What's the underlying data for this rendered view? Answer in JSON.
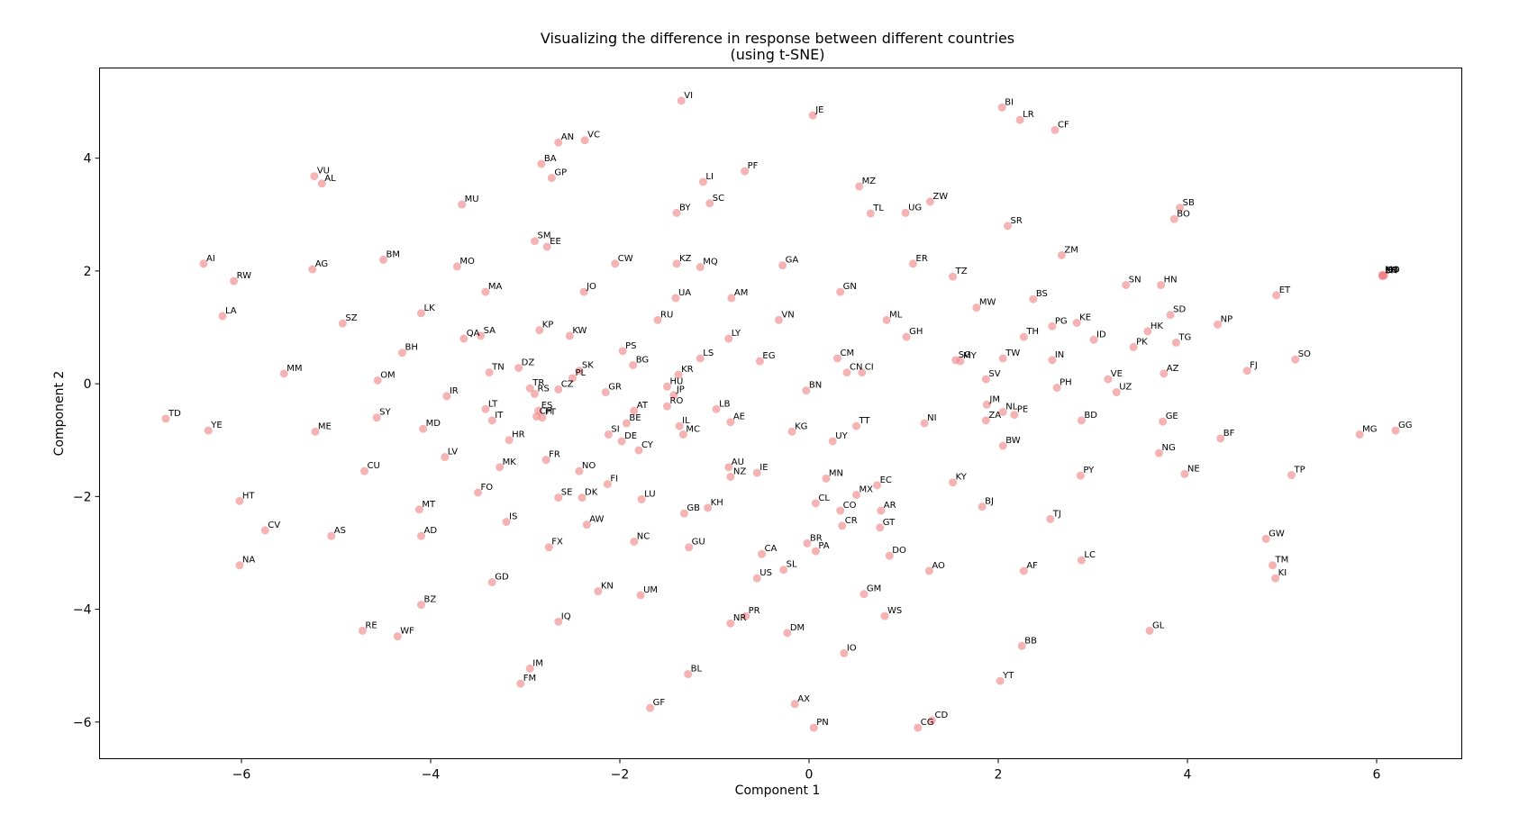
{
  "chart_data": {
    "type": "scatter",
    "title_line1": "Visualizing the difference in response between different countries",
    "title_line2": "(using t-SNE)",
    "xlabel": "Component 1",
    "ylabel": "Component 2",
    "xlim": [
      -7.5,
      6.9
    ],
    "ylim": [
      -6.65,
      5.6
    ],
    "xticks": [
      -6,
      -4,
      -2,
      0,
      2,
      4,
      6
    ],
    "yticks": [
      -6,
      -4,
      -2,
      0,
      2,
      4
    ],
    "xtick_labels": [
      "−6",
      "−4",
      "−2",
      "0",
      "2",
      "4",
      "6"
    ],
    "ytick_labels": [
      "−6",
      "−4",
      "−2",
      "0",
      "2",
      "4"
    ],
    "grid": false,
    "marker_color": "#f08080",
    "points": [
      {
        "label": "VI",
        "x": -1.35,
        "y": 5.02
      },
      {
        "label": "JE",
        "x": 0.04,
        "y": 4.76
      },
      {
        "label": "BI",
        "x": 2.04,
        "y": 4.9
      },
      {
        "label": "LR",
        "x": 2.23,
        "y": 4.68
      },
      {
        "label": "CF",
        "x": 2.6,
        "y": 4.5
      },
      {
        "label": "AN",
        "x": -2.65,
        "y": 4.28
      },
      {
        "label": "VC",
        "x": -2.37,
        "y": 4.32
      },
      {
        "label": "BA",
        "x": -2.83,
        "y": 3.9
      },
      {
        "label": "GP",
        "x": -2.72,
        "y": 3.65
      },
      {
        "label": "PF",
        "x": -0.68,
        "y": 3.77
      },
      {
        "label": "LI",
        "x": -1.12,
        "y": 3.58
      },
      {
        "label": "MZ",
        "x": 0.53,
        "y": 3.5
      },
      {
        "label": "VU",
        "x": -5.23,
        "y": 3.68
      },
      {
        "label": "AL",
        "x": -5.15,
        "y": 3.55
      },
      {
        "label": "MU",
        "x": -3.67,
        "y": 3.18
      },
      {
        "label": "SC",
        "x": -1.05,
        "y": 3.2
      },
      {
        "label": "BY",
        "x": -1.4,
        "y": 3.03
      },
      {
        "label": "ZW",
        "x": 1.28,
        "y": 3.23
      },
      {
        "label": "TL",
        "x": 0.65,
        "y": 3.02
      },
      {
        "label": "UG",
        "x": 1.02,
        "y": 3.03
      },
      {
        "label": "SR",
        "x": 2.1,
        "y": 2.8
      },
      {
        "label": "SB",
        "x": 3.92,
        "y": 3.12
      },
      {
        "label": "BO",
        "x": 3.86,
        "y": 2.92
      },
      {
        "label": "SM",
        "x": -2.9,
        "y": 2.53
      },
      {
        "label": "EE",
        "x": -2.77,
        "y": 2.43
      },
      {
        "label": "AI",
        "x": -6.4,
        "y": 2.13
      },
      {
        "label": "BM",
        "x": -4.5,
        "y": 2.2
      },
      {
        "label": "AG",
        "x": -5.25,
        "y": 2.03
      },
      {
        "label": "MO",
        "x": -3.72,
        "y": 2.08
      },
      {
        "label": "CW",
        "x": -2.05,
        "y": 2.13
      },
      {
        "label": "KZ",
        "x": -1.4,
        "y": 2.13
      },
      {
        "label": "MQ",
        "x": -1.15,
        "y": 2.07
      },
      {
        "label": "GA",
        "x": -0.28,
        "y": 2.1
      },
      {
        "label": "ER",
        "x": 1.1,
        "y": 2.13
      },
      {
        "label": "ZM",
        "x": 2.67,
        "y": 2.28
      },
      {
        "label": "TZ",
        "x": 1.52,
        "y": 1.9
      },
      {
        "label": "RW",
        "x": -6.08,
        "y": 1.82
      },
      {
        "label": "JO",
        "x": -2.38,
        "y": 1.63
      },
      {
        "label": "MA",
        "x": -3.42,
        "y": 1.63
      },
      {
        "label": "UA",
        "x": -1.41,
        "y": 1.52
      },
      {
        "label": "AM",
        "x": -0.82,
        "y": 1.52
      },
      {
        "label": "GN",
        "x": 0.33,
        "y": 1.63
      },
      {
        "label": "BS",
        "x": 2.37,
        "y": 1.5
      },
      {
        "label": "SN",
        "x": 3.35,
        "y": 1.75
      },
      {
        "label": "HN",
        "x": 3.72,
        "y": 1.75
      },
      {
        "label": "ET",
        "x": 4.94,
        "y": 1.57
      },
      {
        "label": "LA",
        "x": -6.2,
        "y": 1.2
      },
      {
        "label": "SZ",
        "x": -4.93,
        "y": 1.07
      },
      {
        "label": "LK",
        "x": -4.1,
        "y": 1.25
      },
      {
        "label": "RU",
        "x": -1.6,
        "y": 1.13
      },
      {
        "label": "VN",
        "x": -0.32,
        "y": 1.13
      },
      {
        "label": "ML",
        "x": 0.82,
        "y": 1.13
      },
      {
        "label": "MW",
        "x": 1.77,
        "y": 1.35
      },
      {
        "label": "KE",
        "x": 2.83,
        "y": 1.08
      },
      {
        "label": "PG",
        "x": 2.57,
        "y": 1.02
      },
      {
        "label": "SD",
        "x": 3.82,
        "y": 1.22
      },
      {
        "label": "NP",
        "x": 4.32,
        "y": 1.05
      },
      {
        "label": "KP",
        "x": -2.85,
        "y": 0.95
      },
      {
        "label": "KW",
        "x": -2.53,
        "y": 0.85
      },
      {
        "label": "QA",
        "x": -3.65,
        "y": 0.8
      },
      {
        "label": "SA",
        "x": -3.47,
        "y": 0.85
      },
      {
        "label": "LY",
        "x": -0.85,
        "y": 0.8
      },
      {
        "label": "GH",
        "x": 1.03,
        "y": 0.83
      },
      {
        "label": "TH",
        "x": 2.27,
        "y": 0.83
      },
      {
        "label": "ID",
        "x": 3.01,
        "y": 0.78
      },
      {
        "label": "HK",
        "x": 3.58,
        "y": 0.93
      },
      {
        "label": "PK",
        "x": 3.43,
        "y": 0.65
      },
      {
        "label": "TG",
        "x": 3.88,
        "y": 0.73
      },
      {
        "label": "BH",
        "x": -4.3,
        "y": 0.55
      },
      {
        "label": "PS",
        "x": -1.97,
        "y": 0.58
      },
      {
        "label": "LS",
        "x": -1.15,
        "y": 0.45
      },
      {
        "label": "EG",
        "x": -0.52,
        "y": 0.4
      },
      {
        "label": "CM",
        "x": 0.3,
        "y": 0.45
      },
      {
        "label": "MY",
        "x": 1.6,
        "y": 0.4
      },
      {
        "label": "SG",
        "x": 1.55,
        "y": 0.42
      },
      {
        "label": "TW",
        "x": 2.05,
        "y": 0.45
      },
      {
        "label": "IN",
        "x": 2.57,
        "y": 0.42
      },
      {
        "label": "SO",
        "x": 5.14,
        "y": 0.43
      },
      {
        "label": "BG",
        "x": -1.86,
        "y": 0.33
      },
      {
        "label": "MM",
        "x": -5.55,
        "y": 0.18
      },
      {
        "label": "TN",
        "x": -3.38,
        "y": 0.2
      },
      {
        "label": "DZ",
        "x": -3.07,
        "y": 0.28
      },
      {
        "label": "SK",
        "x": -2.43,
        "y": 0.23
      },
      {
        "label": "PL",
        "x": -2.5,
        "y": 0.1
      },
      {
        "label": "KR",
        "x": -1.38,
        "y": 0.16
      },
      {
        "label": "CN",
        "x": 0.4,
        "y": 0.2
      },
      {
        "label": "CI",
        "x": 0.56,
        "y": 0.2
      },
      {
        "label": "SV",
        "x": 1.87,
        "y": 0.08
      },
      {
        "label": "VE",
        "x": 3.16,
        "y": 0.08
      },
      {
        "label": "AZ",
        "x": 3.75,
        "y": 0.18
      },
      {
        "label": "FJ",
        "x": 4.63,
        "y": 0.23
      },
      {
        "label": "OM",
        "x": -4.56,
        "y": 0.06
      },
      {
        "label": "CZ",
        "x": -2.65,
        "y": -0.1
      },
      {
        "label": "TR",
        "x": -2.95,
        "y": -0.08
      },
      {
        "label": "RS",
        "x": -2.9,
        "y": -0.18
      },
      {
        "label": "HU",
        "x": -1.5,
        "y": -0.05
      },
      {
        "label": "GR",
        "x": -2.15,
        "y": -0.15
      },
      {
        "label": "JP",
        "x": -1.43,
        "y": -0.2
      },
      {
        "label": "BN",
        "x": -0.03,
        "y": -0.12
      },
      {
        "label": "PH",
        "x": 2.62,
        "y": -0.07
      },
      {
        "label": "UZ",
        "x": 3.25,
        "y": -0.15
      },
      {
        "label": "IR",
        "x": -3.83,
        "y": -0.22
      },
      {
        "label": "RO",
        "x": -1.5,
        "y": -0.4
      },
      {
        "label": "AT",
        "x": -1.85,
        "y": -0.48
      },
      {
        "label": "LB",
        "x": -0.98,
        "y": -0.45
      },
      {
        "label": "JM",
        "x": 1.88,
        "y": -0.37
      },
      {
        "label": "LT",
        "x": -3.42,
        "y": -0.45
      },
      {
        "label": "ES",
        "x": -2.86,
        "y": -0.48
      },
      {
        "label": "CH",
        "x": -2.88,
        "y": -0.58
      },
      {
        "label": "PT",
        "x": -2.82,
        "y": -0.6
      },
      {
        "label": "BE",
        "x": -1.93,
        "y": -0.7
      },
      {
        "label": "NL",
        "x": 2.05,
        "y": -0.5
      },
      {
        "label": "PE",
        "x": 2.17,
        "y": -0.55
      },
      {
        "label": "SY",
        "x": -4.57,
        "y": -0.6
      },
      {
        "label": "IT",
        "x": -3.35,
        "y": -0.65
      },
      {
        "label": "AE",
        "x": -0.83,
        "y": -0.68
      },
      {
        "label": "ZA",
        "x": 1.87,
        "y": -0.65
      },
      {
        "label": "BD",
        "x": 2.88,
        "y": -0.65
      },
      {
        "label": "GE",
        "x": 3.74,
        "y": -0.67
      },
      {
        "label": "TD",
        "x": -6.8,
        "y": -0.62
      },
      {
        "label": "IL",
        "x": -1.37,
        "y": -0.75
      },
      {
        "label": "TT",
        "x": 0.5,
        "y": -0.75
      },
      {
        "label": "NI",
        "x": 1.22,
        "y": -0.7
      },
      {
        "label": "YE",
        "x": -6.35,
        "y": -0.83
      },
      {
        "label": "ME",
        "x": -5.22,
        "y": -0.85
      },
      {
        "label": "MD",
        "x": -4.08,
        "y": -0.8
      },
      {
        "label": "SI",
        "x": -2.12,
        "y": -0.9
      },
      {
        "label": "MC",
        "x": -1.33,
        "y": -0.9
      },
      {
        "label": "KG",
        "x": -0.18,
        "y": -0.85
      },
      {
        "label": "MG",
        "x": 5.82,
        "y": -0.9
      },
      {
        "label": "GG",
        "x": 6.2,
        "y": -0.83
      },
      {
        "label": "HR",
        "x": -3.17,
        "y": -1.0
      },
      {
        "label": "DE",
        "x": -1.98,
        "y": -1.02
      },
      {
        "label": "CY",
        "x": -1.8,
        "y": -1.18
      },
      {
        "label": "UY",
        "x": 0.25,
        "y": -1.02
      },
      {
        "label": "BW",
        "x": 2.05,
        "y": -1.1
      },
      {
        "label": "BF",
        "x": 4.35,
        "y": -0.97
      },
      {
        "label": "NG",
        "x": 3.7,
        "y": -1.23
      },
      {
        "label": "LV",
        "x": -3.85,
        "y": -1.3
      },
      {
        "label": "FR",
        "x": -2.78,
        "y": -1.35
      },
      {
        "label": "MK",
        "x": -3.27,
        "y": -1.48
      },
      {
        "label": "NO",
        "x": -2.43,
        "y": -1.55
      },
      {
        "label": "AU",
        "x": -0.85,
        "y": -1.48
      },
      {
        "label": "NZ",
        "x": -0.83,
        "y": -1.65
      },
      {
        "label": "IE",
        "x": -0.55,
        "y": -1.58
      },
      {
        "label": "MN",
        "x": 0.18,
        "y": -1.68
      },
      {
        "label": "CU",
        "x": -4.7,
        "y": -1.55
      },
      {
        "label": "KY",
        "x": 1.52,
        "y": -1.75
      },
      {
        "label": "PY",
        "x": 2.87,
        "y": -1.63
      },
      {
        "label": "NE",
        "x": 3.97,
        "y": -1.6
      },
      {
        "label": "TP",
        "x": 5.1,
        "y": -1.62
      },
      {
        "label": "FI",
        "x": -2.13,
        "y": -1.78
      },
      {
        "label": "EC",
        "x": 0.72,
        "y": -1.8
      },
      {
        "label": "MX",
        "x": 0.5,
        "y": -1.97
      },
      {
        "label": "FO",
        "x": -3.5,
        "y": -1.93
      },
      {
        "label": "SE",
        "x": -2.65,
        "y": -2.02
      },
      {
        "label": "DK",
        "x": -2.4,
        "y": -2.02
      },
      {
        "label": "LU",
        "x": -1.77,
        "y": -2.05
      },
      {
        "label": "HT",
        "x": -6.02,
        "y": -2.08
      },
      {
        "label": "CL",
        "x": 0.07,
        "y": -2.12
      },
      {
        "label": "KH",
        "x": -1.07,
        "y": -2.2
      },
      {
        "label": "BJ",
        "x": 1.83,
        "y": -2.18
      },
      {
        "label": "MT",
        "x": -4.12,
        "y": -2.23
      },
      {
        "label": "CO",
        "x": 0.33,
        "y": -2.25
      },
      {
        "label": "AR",
        "x": 0.76,
        "y": -2.25
      },
      {
        "label": "GB",
        "x": -1.32,
        "y": -2.3
      },
      {
        "label": "TJ",
        "x": 2.55,
        "y": -2.4
      },
      {
        "label": "IS",
        "x": -3.2,
        "y": -2.45
      },
      {
        "label": "AW",
        "x": -2.35,
        "y": -2.5
      },
      {
        "label": "CR",
        "x": 0.35,
        "y": -2.52
      },
      {
        "label": "GT",
        "x": 0.75,
        "y": -2.55
      },
      {
        "label": "CV",
        "x": -5.75,
        "y": -2.6
      },
      {
        "label": "AS",
        "x": -5.05,
        "y": -2.7
      },
      {
        "label": "AD",
        "x": -4.1,
        "y": -2.7
      },
      {
        "label": "GW",
        "x": 4.83,
        "y": -2.75
      },
      {
        "label": "NC",
        "x": -1.85,
        "y": -2.8
      },
      {
        "label": "FX",
        "x": -2.75,
        "y": -2.9
      },
      {
        "label": "GU",
        "x": -1.27,
        "y": -2.9
      },
      {
        "label": "BR",
        "x": -0.02,
        "y": -2.83
      },
      {
        "label": "PA",
        "x": 0.07,
        "y": -2.97
      },
      {
        "label": "CA",
        "x": -0.5,
        "y": -3.02
      },
      {
        "label": "DO",
        "x": 0.85,
        "y": -3.05
      },
      {
        "label": "LC",
        "x": 2.88,
        "y": -3.13
      },
      {
        "label": "NA",
        "x": -6.02,
        "y": -3.22
      },
      {
        "label": "TM",
        "x": 4.9,
        "y": -3.22
      },
      {
        "label": "AO",
        "x": 1.27,
        "y": -3.32
      },
      {
        "label": "AF",
        "x": 2.27,
        "y": -3.32
      },
      {
        "label": "SL",
        "x": -0.27,
        "y": -3.3
      },
      {
        "label": "US",
        "x": -0.55,
        "y": -3.45
      },
      {
        "label": "KI",
        "x": 4.93,
        "y": -3.45
      },
      {
        "label": "GD",
        "x": -3.35,
        "y": -3.52
      },
      {
        "label": "KN",
        "x": -2.23,
        "y": -3.68
      },
      {
        "label": "UM",
        "x": -1.78,
        "y": -3.75
      },
      {
        "label": "GM",
        "x": 0.58,
        "y": -3.73
      },
      {
        "label": "BZ",
        "x": -4.1,
        "y": -3.92
      },
      {
        "label": "WS",
        "x": 0.8,
        "y": -4.12
      },
      {
        "label": "PR",
        "x": -0.67,
        "y": -4.12
      },
      {
        "label": "NR",
        "x": -0.83,
        "y": -4.25
      },
      {
        "label": "IQ",
        "x": -2.65,
        "y": -4.22
      },
      {
        "label": "RE",
        "x": -4.72,
        "y": -4.38
      },
      {
        "label": "WF",
        "x": -4.35,
        "y": -4.48
      },
      {
        "label": "DM",
        "x": -0.23,
        "y": -4.42
      },
      {
        "label": "GL",
        "x": 3.6,
        "y": -4.38
      },
      {
        "label": "BB",
        "x": 2.25,
        "y": -4.65
      },
      {
        "label": "IO",
        "x": 0.37,
        "y": -4.78
      },
      {
        "label": "IM",
        "x": -2.95,
        "y": -5.05
      },
      {
        "label": "BL",
        "x": -1.28,
        "y": -5.15
      },
      {
        "label": "FM",
        "x": -3.05,
        "y": -5.32
      },
      {
        "label": "YT",
        "x": 2.02,
        "y": -5.27
      },
      {
        "label": "AX",
        "x": -0.15,
        "y": -5.68
      },
      {
        "label": "GF",
        "x": -1.68,
        "y": -5.75
      },
      {
        "label": "CD",
        "x": 1.3,
        "y": -5.97
      },
      {
        "label": "PN",
        "x": 0.05,
        "y": -6.1
      },
      {
        "label": "CG",
        "x": 1.15,
        "y": -6.1
      },
      {
        "label": "MO",
        "x": 6.06,
        "y": 1.93
      },
      {
        "label": "KO",
        "x": 6.07,
        "y": 1.92
      },
      {
        "label": "ST",
        "x": 6.08,
        "y": 1.92
      },
      {
        "label": "SH",
        "x": 6.06,
        "y": 1.91
      }
    ]
  }
}
